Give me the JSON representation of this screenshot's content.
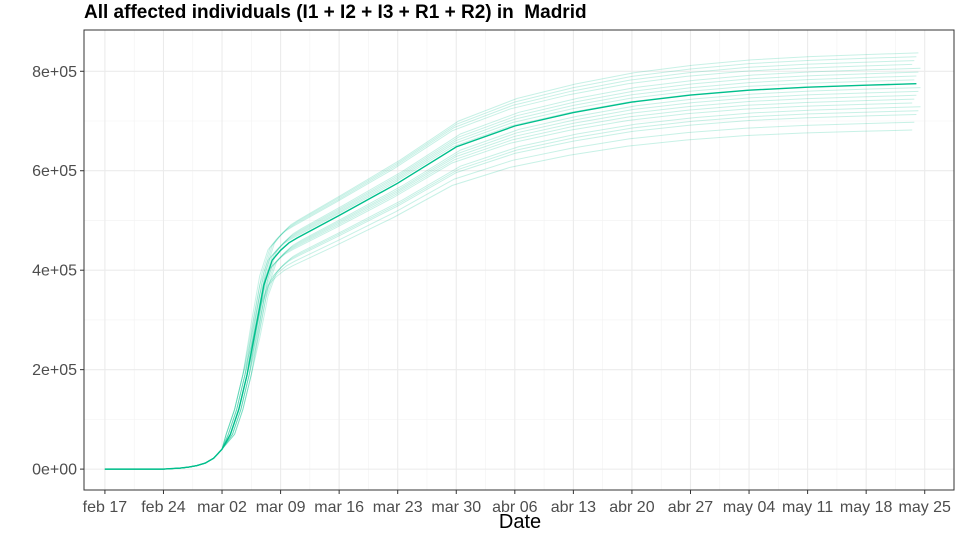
{
  "chart_data": {
    "type": "line",
    "title": "All affected individuals (I1 + I2 + I3 + R1 + R2) in  Madrid",
    "xlabel": "Date",
    "ylabel": "",
    "x_ticks": [
      "feb 17",
      "feb 24",
      "mar 02",
      "mar 09",
      "mar 16",
      "mar 23",
      "mar 30",
      "abr 06",
      "abr 13",
      "abr 20",
      "abr 27",
      "may 04",
      "may 11",
      "may 18",
      "may 25"
    ],
    "x_tick_days": [
      0,
      7,
      14,
      21,
      28,
      35,
      42,
      49,
      56,
      63,
      70,
      77,
      84,
      91,
      98
    ],
    "y_ticks": [
      "0e+00",
      "2e+05",
      "4e+05",
      "6e+05",
      "8e+05"
    ],
    "y_tick_values": [
      0,
      200000,
      400000,
      600000,
      800000
    ],
    "xlim": [
      -2.5,
      101.5
    ],
    "ylim": [
      -42000,
      883000
    ],
    "grid": true,
    "legend": "none",
    "line_color": "#00BF8C",
    "median_series": {
      "x": [
        0,
        5,
        7,
        9,
        10,
        11,
        12,
        13,
        14,
        15,
        16,
        17,
        18,
        19,
        20,
        21,
        22,
        23,
        28,
        35,
        42,
        49,
        56,
        63,
        70,
        77,
        84,
        91,
        97
      ],
      "y": [
        0,
        0,
        0,
        2000,
        4000,
        7000,
        12000,
        22000,
        40000,
        70000,
        120000,
        190000,
        280000,
        370000,
        420000,
        440000,
        455000,
        465000,
        510000,
        575000,
        648000,
        690000,
        717000,
        738000,
        752000,
        762000,
        768000,
        772000,
        775000
      ]
    },
    "ensemble_scales": [
      0.88,
      0.9,
      0.92,
      0.93,
      0.94,
      0.95,
      0.96,
      0.97,
      0.98,
      0.99,
      1.0,
      1.01,
      1.02,
      1.03,
      1.04,
      1.05,
      1.06,
      1.07,
      1.08
    ]
  }
}
